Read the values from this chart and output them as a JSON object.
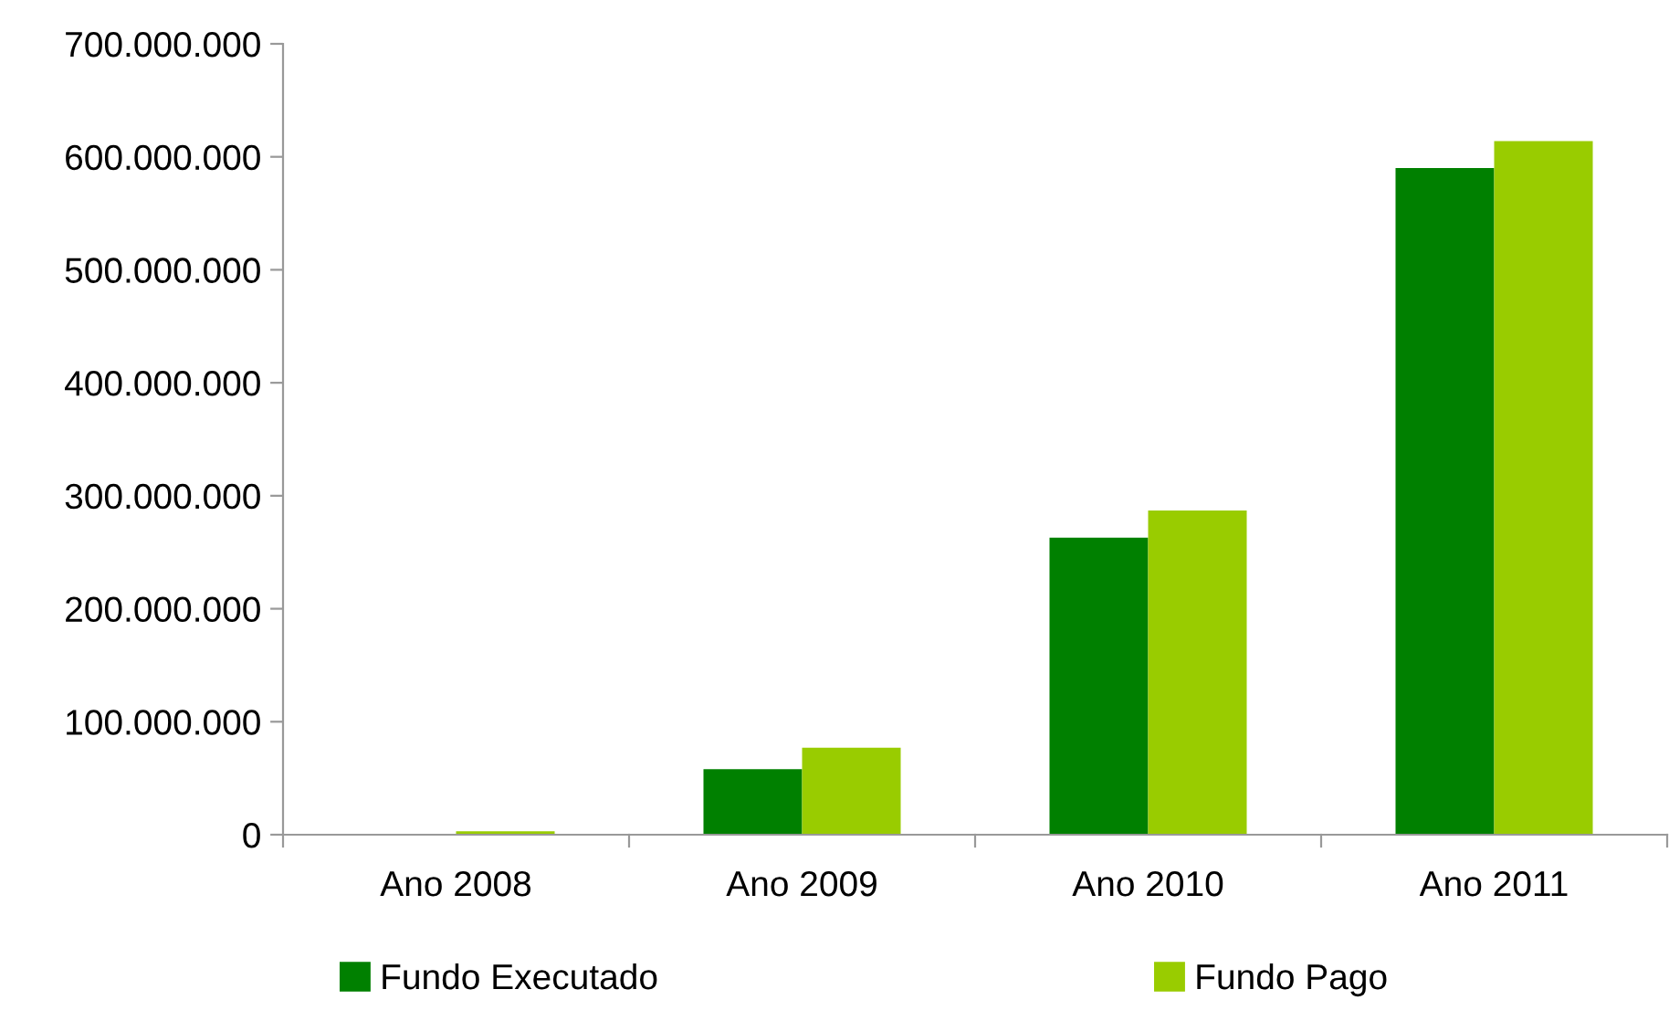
{
  "chart_data": {
    "type": "bar",
    "categories": [
      "Ano 2008",
      "Ano 2009",
      "Ano 2010",
      "Ano 2011"
    ],
    "series": [
      {
        "name": "Fundo Executado",
        "color": "#008000",
        "values": [
          0,
          58000000,
          263000000,
          590000000
        ]
      },
      {
        "name": "Fundo Pago",
        "color": "#99cc00",
        "values": [
          3000000,
          77000000,
          287000000,
          614000000
        ]
      }
    ],
    "ylim": [
      0,
      700000000
    ],
    "yticks": [
      {
        "value": 0,
        "label": "0"
      },
      {
        "value": 100000000,
        "label": "100.000.000"
      },
      {
        "value": 200000000,
        "label": "200.000.000"
      },
      {
        "value": 300000000,
        "label": "300.000.000"
      },
      {
        "value": 400000000,
        "label": "400.000.000"
      },
      {
        "value": 500000000,
        "label": "500.000.000"
      },
      {
        "value": 600000000,
        "label": "600.000.000"
      },
      {
        "value": 700000000,
        "label": "700.000.000"
      }
    ],
    "grid": false,
    "legend": "bottom"
  }
}
